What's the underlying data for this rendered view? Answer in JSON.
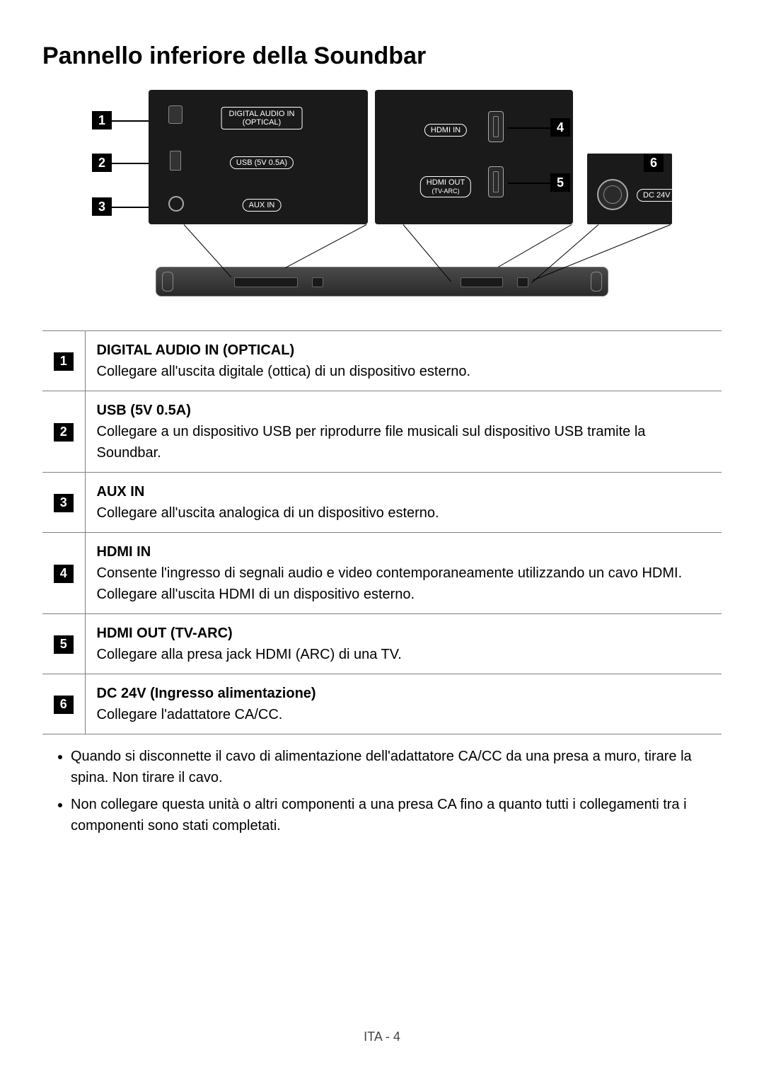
{
  "title": "Pannello inferiore della Soundbar",
  "labels": {
    "optical": "DIGITAL AUDIO IN\n(OPTICAL)",
    "usb": "USB (5V 0.5A)",
    "aux": "AUX IN",
    "hdmi_in": "HDMI IN",
    "hdmi_out_l1": "HDMI OUT",
    "hdmi_out_l2": "(TV-ARC)",
    "dc": "DC 24V"
  },
  "rows": [
    {
      "n": "1",
      "name": "DIGITAL AUDIO IN (OPTICAL)",
      "desc": "Collegare all'uscita digitale (ottica) di un dispositivo esterno."
    },
    {
      "n": "2",
      "name": "USB (5V 0.5A)",
      "desc": "Collegare a un dispositivo USB per riprodurre file musicali sul dispositivo USB tramite la Soundbar."
    },
    {
      "n": "3",
      "name": "AUX IN",
      "desc": "Collegare all'uscita analogica di un dispositivo esterno."
    },
    {
      "n": "4",
      "name": "HDMI IN",
      "desc": "Consente l'ingresso di segnali audio e video contemporaneamente utilizzando un cavo HDMI. Collegare all'uscita HDMI di un dispositivo esterno."
    },
    {
      "n": "5",
      "name": "HDMI OUT (TV-ARC)",
      "desc": "Collegare alla presa jack HDMI (ARC) di una TV."
    },
    {
      "n": "6",
      "name": "DC 24V (Ingresso alimentazione)",
      "desc": "Collegare l'adattatore CA/CC."
    }
  ],
  "notes": [
    "Quando si disconnette il cavo di alimentazione dell'adattatore CA/CC da una presa a muro, tirare la spina. Non tirare il cavo.",
    "Non collegare questa unità o altri componenti a una presa CA fino a quanto tutti i collegamenti tra i componenti sono stati completati."
  ],
  "footer": "ITA - 4"
}
